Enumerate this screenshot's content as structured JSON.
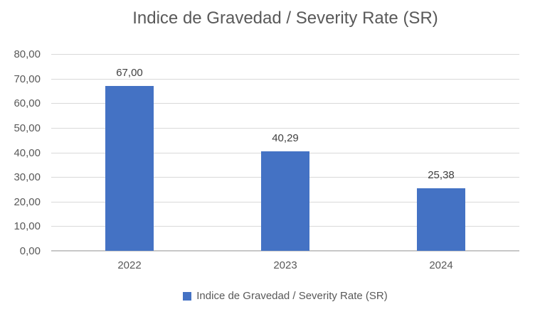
{
  "chart_data": {
    "type": "bar",
    "title": "Indice de Gravedad / Severity Rate (SR)",
    "categories": [
      "2022",
      "2023",
      "2024"
    ],
    "values": [
      67.0,
      40.29,
      25.38
    ],
    "value_labels": [
      "67,00",
      "40,29",
      "25,38"
    ],
    "y_tick_values": [
      80,
      70,
      60,
      50,
      40,
      30,
      20,
      10,
      0
    ],
    "y_tick_labels": [
      "80,00",
      "70,00",
      "60,00",
      "50,00",
      "40,00",
      "30,00",
      "20,00",
      "10,00",
      "0,00"
    ],
    "ylim": [
      0,
      80
    ],
    "xlabel": "",
    "ylabel": "",
    "grid": true,
    "legend_position": "bottom",
    "legend": "Indice de Gravedad / Severity Rate (SR)",
    "colors": {
      "bar": "#4472C4",
      "gridline": "#D9D9D9",
      "axis_line": "#C8C8C8",
      "title_text": "#595959",
      "axis_text": "#595959",
      "data_label_text": "#404040",
      "background": "#FFFFFF"
    }
  }
}
